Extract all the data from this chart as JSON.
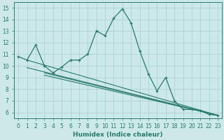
{
  "xlabel": "Humidex (Indice chaleur)",
  "xlim": [
    -0.5,
    23.5
  ],
  "ylim": [
    5.5,
    15.5
  ],
  "xticks": [
    0,
    1,
    2,
    3,
    4,
    5,
    6,
    7,
    8,
    9,
    10,
    11,
    12,
    13,
    14,
    15,
    16,
    17,
    18,
    19,
    20,
    21,
    22,
    23
  ],
  "yticks": [
    6,
    7,
    8,
    9,
    10,
    11,
    12,
    13,
    14,
    15
  ],
  "bg_color": "#cce8e8",
  "grid_color": "#aacece",
  "line_color": "#2a7a6a",
  "line1_x": [
    0,
    1,
    2,
    3,
    4,
    5,
    6,
    7,
    8,
    9,
    10,
    11,
    12,
    13,
    14,
    15,
    16,
    17,
    18,
    19,
    20,
    21,
    22,
    23
  ],
  "line1_y": [
    10.8,
    10.5,
    11.8,
    10.0,
    9.4,
    9.9,
    10.5,
    10.5,
    11.0,
    13.0,
    12.6,
    14.1,
    14.9,
    13.7,
    11.3,
    9.3,
    7.85,
    9.0,
    7.0,
    6.25,
    6.25,
    6.15,
    5.82,
    5.75
  ],
  "line2_x": [
    1,
    23
  ],
  "line2_y": [
    10.5,
    5.75
  ],
  "line3_x": [
    1,
    23
  ],
  "line3_y": [
    9.85,
    5.75
  ],
  "line4_x": [
    3,
    23
  ],
  "line4_y": [
    9.4,
    5.75
  ],
  "line5_x": [
    3,
    23
  ],
  "line5_y": [
    9.2,
    5.75
  ]
}
